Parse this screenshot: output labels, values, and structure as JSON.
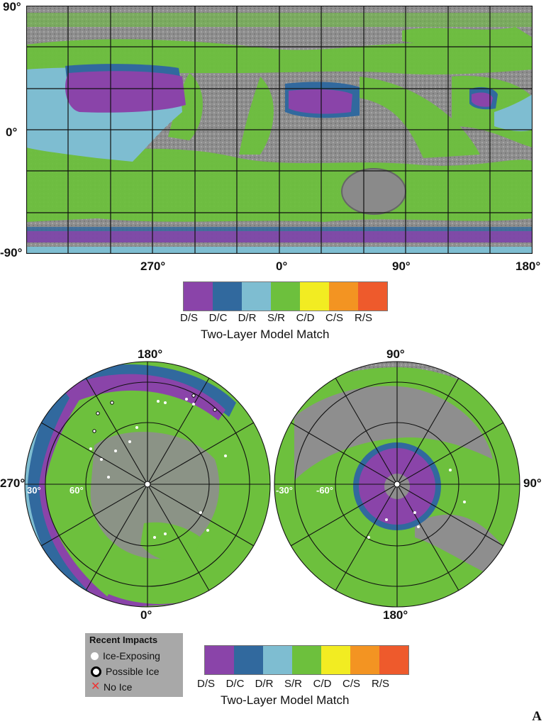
{
  "map_labels": {
    "lat_90": "90°",
    "lat_0": "0°",
    "lat_m90": "-90°",
    "lon_270": "270°",
    "lon_0": "0°",
    "lon_90": "90°",
    "lon_180": "180°"
  },
  "north_polar": {
    "top": "180°",
    "bottom": "0°",
    "left": "270°",
    "ring_30": "30°",
    "ring_60": "60°"
  },
  "south_polar": {
    "top": "90°",
    "bottom": "180°",
    "right": "90°",
    "ring_30": "-30°",
    "ring_60": "-60°"
  },
  "legend": {
    "title": "Two-Layer Model Match",
    "classes": [
      {
        "code": "D/S",
        "color": "#8a44a9"
      },
      {
        "code": "D/C",
        "color": "#31699e"
      },
      {
        "code": "D/R",
        "color": "#7ebdd1"
      },
      {
        "code": "S/R",
        "color": "#6dc03d"
      },
      {
        "code": "C/D",
        "color": "#f2ec22"
      },
      {
        "code": "C/S",
        "color": "#f39422"
      },
      {
        "code": "R/S",
        "color": "#ee5a2c"
      }
    ]
  },
  "impacts": {
    "title": "Recent Impacts",
    "ice_exposing": "Ice-Exposing",
    "possible_ice": "Possible Ice",
    "no_ice": "No Ice"
  },
  "panel_label": "A",
  "colors": {
    "terrain": "#8e8e8e",
    "D/S": "#8a44a9",
    "D/C": "#31699e",
    "D/R": "#7ebdd1",
    "S/R": "#6dc03d"
  }
}
